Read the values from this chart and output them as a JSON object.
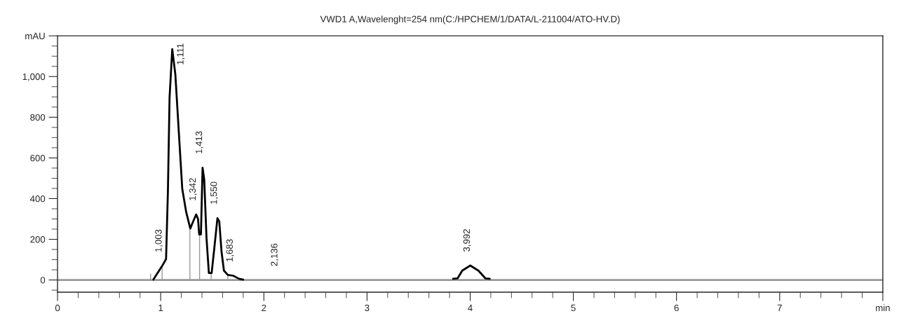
{
  "chart_data": {
    "type": "line",
    "title": "VWD1 A,Wavelenght=254 nm(C:/HPCHEM/1/DATA/L-211004/ATO-HV.D)",
    "series": [
      {
        "color": "#000000",
        "x": [
          0.929,
          1.014,
          1.052,
          1.07,
          1.086,
          1.112,
          1.142,
          1.176,
          1.209,
          1.247,
          1.287,
          1.314,
          1.344,
          1.362,
          1.373,
          1.39,
          1.406,
          1.422,
          1.444,
          1.467,
          1.494,
          1.523,
          1.55,
          1.568,
          1.59,
          1.613,
          1.651,
          1.703,
          1.759,
          1.8
        ],
        "values": [
          2,
          69,
          103,
          438,
          897,
          1135,
          1011,
          724,
          448,
          334,
          253,
          287,
          322,
          300,
          224,
          224,
          552,
          494,
          207,
          34,
          34,
          172,
          304,
          287,
          138,
          46,
          25,
          21,
          6,
          2
        ]
      },
      {
        "color": "#000000",
        "x": [
          3.834,
          3.878,
          3.923,
          4.001,
          4.08,
          4.147,
          4.19
        ],
        "values": [
          6,
          8,
          46,
          71,
          46,
          8,
          6
        ]
      },
      {
        "color": "#999999",
        "x": [
          0.902,
          0.902
        ],
        "values": [
          0,
          29
        ]
      },
      {
        "color": "#999999",
        "x": [
          1.014,
          1.014
        ],
        "values": [
          0,
          69
        ]
      },
      {
        "color": "#999999",
        "x": [
          1.283,
          1.283
        ],
        "values": [
          0,
          253
        ]
      },
      {
        "color": "#999999",
        "x": [
          1.377,
          1.377
        ],
        "values": [
          0,
          224
        ]
      },
      {
        "color": "#999999",
        "x": [
          1.489,
          1.489
        ],
        "values": [
          0,
          34
        ]
      },
      {
        "color": "#999999",
        "x": [
          1.651,
          1.651
        ],
        "values": [
          0,
          25
        ]
      }
    ],
    "annotations": [
      {
        "text": "1,003",
        "x": 1.014,
        "y": 69
      },
      {
        "text": "1,111",
        "x": 1.112,
        "y": 1135
      },
      {
        "text": "1,342",
        "x": 1.344,
        "y": 322
      },
      {
        "text": "1,413",
        "x": 1.406,
        "y": 552
      },
      {
        "text": "1,550",
        "x": 1.55,
        "y": 304
      },
      {
        "text": "1,683",
        "x": 1.703,
        "y": 21
      },
      {
        "text": "2,136",
        "x": 2.136,
        "y": 0
      },
      {
        "text": "3,992",
        "x": 4.001,
        "y": 71
      }
    ],
    "ref_lines": [
      {
        "axis": "y",
        "value": 0,
        "color": "#999999",
        "line_style": "solid"
      }
    ],
    "xlim": [
      0,
      8
    ],
    "ylim": [
      -60,
      1200
    ],
    "xticks": [
      0,
      {
        "value": 0.2,
        "label": null
      },
      {
        "value": 0.4,
        "label": null
      },
      {
        "value": 0.6,
        "label": null
      },
      {
        "value": 0.8,
        "label": null
      },
      1,
      {
        "value": 1.2,
        "label": null
      },
      {
        "value": 1.4,
        "label": null
      },
      {
        "value": 1.6,
        "label": null
      },
      {
        "value": 1.8,
        "label": null
      },
      2,
      {
        "value": 2.2,
        "label": null
      },
      {
        "value": 2.4,
        "label": null
      },
      {
        "value": 2.6,
        "label": null
      },
      {
        "value": 2.8,
        "label": null
      },
      3,
      {
        "value": 3.2,
        "label": null
      },
      {
        "value": 3.4,
        "label": null
      },
      {
        "value": 3.6,
        "label": null
      },
      {
        "value": 3.8,
        "label": null
      },
      4,
      {
        "value": 4.2,
        "label": null
      },
      {
        "value": 4.4,
        "label": null
      },
      {
        "value": 4.6,
        "label": null
      },
      {
        "value": 4.8,
        "label": null
      },
      5,
      {
        "value": 5.2,
        "label": null
      },
      {
        "value": 5.4,
        "label": null
      },
      {
        "value": 5.6,
        "label": null
      },
      {
        "value": 5.8,
        "label": null
      },
      6,
      {
        "value": 6.2,
        "label": null
      },
      {
        "value": 6.4,
        "label": null
      },
      {
        "value": 6.6,
        "label": null
      },
      {
        "value": 6.8,
        "label": null
      },
      7,
      {
        "value": 7.2,
        "label": null
      },
      {
        "value": 7.4,
        "label": null
      },
      {
        "value": 7.6,
        "label": null
      },
      {
        "value": 7.8,
        "label": null
      },
      {
        "value": 8,
        "label": "min"
      }
    ],
    "yticks": [
      {
        "value": -50,
        "label": null
      },
      0,
      {
        "value": 50,
        "label": null
      },
      {
        "value": 100,
        "label": null
      },
      {
        "value": 150,
        "label": null
      },
      200,
      {
        "value": 250,
        "label": null
      },
      {
        "value": 300,
        "label": null
      },
      {
        "value": 350,
        "label": null
      },
      400,
      {
        "value": 450,
        "label": null
      },
      {
        "value": 500,
        "label": null
      },
      {
        "value": 550,
        "label": null
      },
      600,
      {
        "value": 650,
        "label": null
      },
      {
        "value": 700,
        "label": null
      },
      {
        "value": 750,
        "label": null
      },
      800,
      {
        "value": 850,
        "label": null
      },
      {
        "value": 900,
        "label": null
      },
      {
        "value": 950,
        "label": null
      },
      {
        "value": 1000,
        "label": "1,000"
      },
      {
        "value": 1050,
        "label": null
      },
      {
        "value": 1100,
        "label": null
      },
      {
        "value": 1150,
        "label": null
      },
      {
        "value": 1200,
        "label": "mAU"
      }
    ],
    "grid": false,
    "legend": false,
    "marker": "none",
    "line_style": "solid"
  }
}
